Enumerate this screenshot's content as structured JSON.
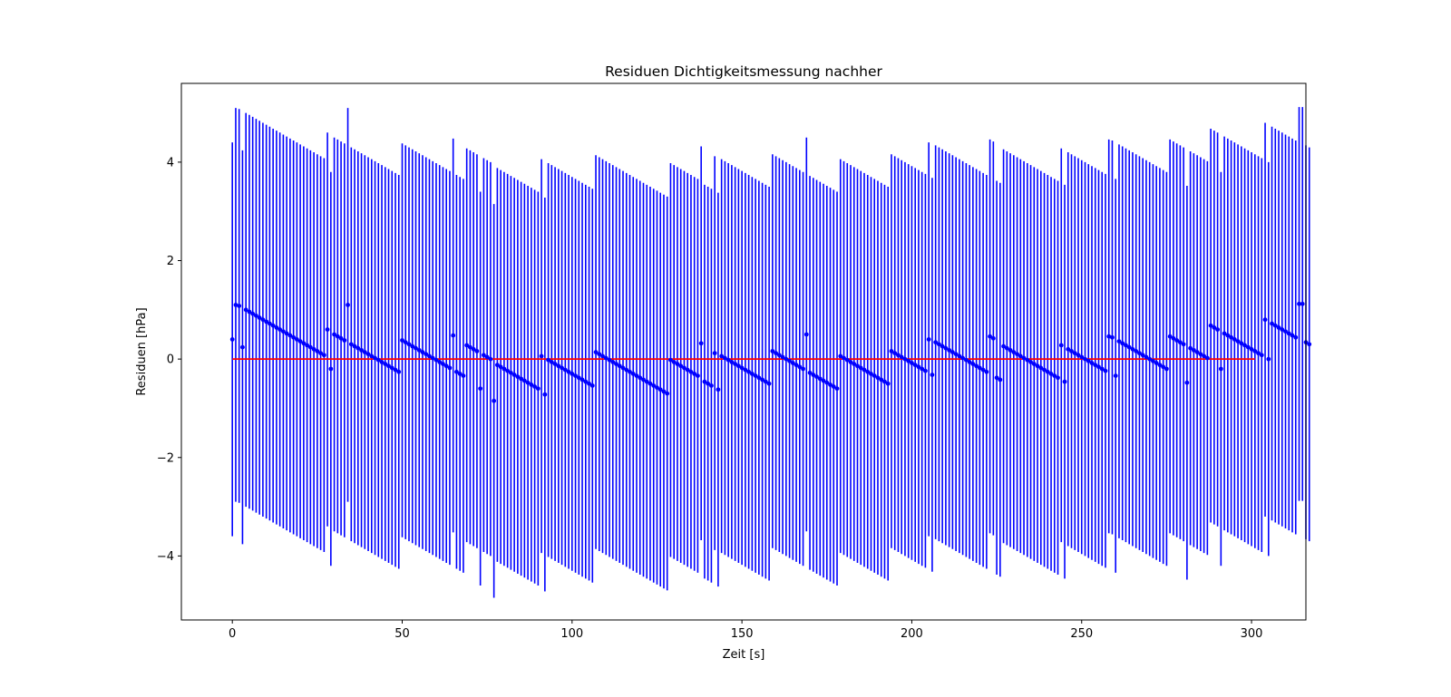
{
  "chart_data": {
    "type": "errorbar",
    "title": "Residuen Dichtigkeitsmessung nachher",
    "xlabel": "Zeit [s]",
    "ylabel": "Residuen [hPa]",
    "xlim": [
      -15,
      316
    ],
    "ylim": [
      -5.3,
      5.6
    ],
    "xticks": [
      0,
      50,
      100,
      150,
      200,
      250,
      300
    ],
    "yticks": [
      -4,
      -2,
      0,
      2,
      4
    ],
    "ytick_labels": [
      "−4",
      "−2",
      "0",
      "2",
      "4"
    ],
    "grid": false,
    "colors": {
      "points": "#0000ff",
      "zero_line": "#ff0000"
    },
    "zero_line": {
      "x": [
        0,
        301
      ],
      "y": 0
    },
    "error_half_width": 4.0,
    "x_step": 1,
    "residuals": [
      0.4,
      1.1,
      1.08,
      0.24,
      1.0,
      0.96,
      0.92,
      0.88,
      0.84,
      0.8,
      0.76,
      0.72,
      0.68,
      0.64,
      0.6,
      0.56,
      0.52,
      0.48,
      0.44,
      0.4,
      0.36,
      0.32,
      0.28,
      0.24,
      0.2,
      0.16,
      0.12,
      0.08,
      0.6,
      -0.2,
      0.5,
      0.46,
      0.42,
      0.38,
      1.1,
      0.3,
      0.26,
      0.22,
      0.18,
      0.14,
      0.1,
      0.06,
      0.02,
      -0.02,
      -0.06,
      -0.1,
      -0.14,
      -0.18,
      -0.22,
      -0.26,
      0.38,
      0.34,
      0.3,
      0.26,
      0.22,
      0.18,
      0.14,
      0.1,
      0.06,
      0.02,
      -0.02,
      -0.06,
      -0.1,
      -0.14,
      -0.18,
      0.48,
      -0.26,
      -0.3,
      -0.34,
      0.28,
      0.24,
      0.2,
      0.16,
      -0.6,
      0.08,
      0.04,
      0.0,
      -0.85,
      -0.12,
      -0.16,
      -0.2,
      -0.24,
      -0.28,
      -0.32,
      -0.36,
      -0.4,
      -0.44,
      -0.48,
      -0.52,
      -0.56,
      -0.6,
      0.06,
      -0.72,
      -0.02,
      -0.06,
      -0.1,
      -0.14,
      -0.18,
      -0.22,
      -0.26,
      -0.3,
      -0.34,
      -0.38,
      -0.42,
      -0.46,
      -0.5,
      -0.54,
      0.14,
      0.1,
      0.06,
      0.02,
      -0.02,
      -0.06,
      -0.1,
      -0.14,
      -0.18,
      -0.22,
      -0.26,
      -0.3,
      -0.34,
      -0.38,
      -0.42,
      -0.46,
      -0.5,
      -0.54,
      -0.58,
      -0.62,
      -0.66,
      -0.7,
      -0.02,
      -0.06,
      -0.1,
      -0.14,
      -0.18,
      -0.22,
      -0.26,
      -0.3,
      -0.34,
      0.32,
      -0.46,
      -0.5,
      -0.54,
      0.12,
      -0.62,
      0.06,
      0.02,
      -0.02,
      -0.06,
      -0.1,
      -0.14,
      -0.18,
      -0.22,
      -0.26,
      -0.3,
      -0.34,
      -0.38,
      -0.42,
      -0.46,
      -0.5,
      0.16,
      0.12,
      0.08,
      0.04,
      0.0,
      -0.04,
      -0.08,
      -0.12,
      -0.16,
      -0.2,
      0.5,
      -0.28,
      -0.32,
      -0.36,
      -0.4,
      -0.44,
      -0.48,
      -0.52,
      -0.56,
      -0.6,
      0.06,
      0.02,
      -0.02,
      -0.06,
      -0.1,
      -0.14,
      -0.18,
      -0.22,
      -0.26,
      -0.3,
      -0.34,
      -0.38,
      -0.42,
      -0.46,
      -0.5,
      0.16,
      0.12,
      0.08,
      0.04,
      0.0,
      -0.04,
      -0.08,
      -0.12,
      -0.16,
      -0.2,
      -0.24,
      0.4,
      -0.32,
      0.34,
      0.3,
      0.26,
      0.22,
      0.18,
      0.14,
      0.1,
      0.06,
      0.02,
      -0.02,
      -0.06,
      -0.1,
      -0.14,
      -0.18,
      -0.22,
      -0.26,
      0.46,
      0.42,
      -0.38,
      -0.42,
      0.26,
      0.22,
      0.18,
      0.14,
      0.1,
      0.06,
      0.02,
      -0.02,
      -0.06,
      -0.1,
      -0.14,
      -0.18,
      -0.22,
      -0.26,
      -0.3,
      -0.34,
      -0.38,
      0.28,
      -0.46,
      0.2,
      0.16,
      0.12,
      0.08,
      0.04,
      0.0,
      -0.04,
      -0.08,
      -0.12,
      -0.16,
      -0.2,
      -0.24,
      0.46,
      0.44,
      -0.34,
      0.36,
      0.32,
      0.28,
      0.24,
      0.2,
      0.16,
      0.12,
      0.08,
      0.04,
      0.0,
      -0.04,
      -0.08,
      -0.12,
      -0.16,
      -0.2,
      0.46,
      0.42,
      0.38,
      0.34,
      0.3,
      -0.48,
      0.22,
      0.18,
      0.14,
      0.1,
      0.06,
      0.02,
      0.68,
      0.64,
      0.6,
      -0.2,
      0.52,
      0.48,
      0.44,
      0.4,
      0.36,
      0.32,
      0.28,
      0.24,
      0.2,
      0.16,
      0.12,
      0.08,
      0.8,
      0.0,
      0.72,
      0.68,
      0.64,
      0.6,
      0.56,
      0.52,
      0.48,
      0.44,
      1.12,
      1.12,
      0.34,
      0.3
    ]
  }
}
